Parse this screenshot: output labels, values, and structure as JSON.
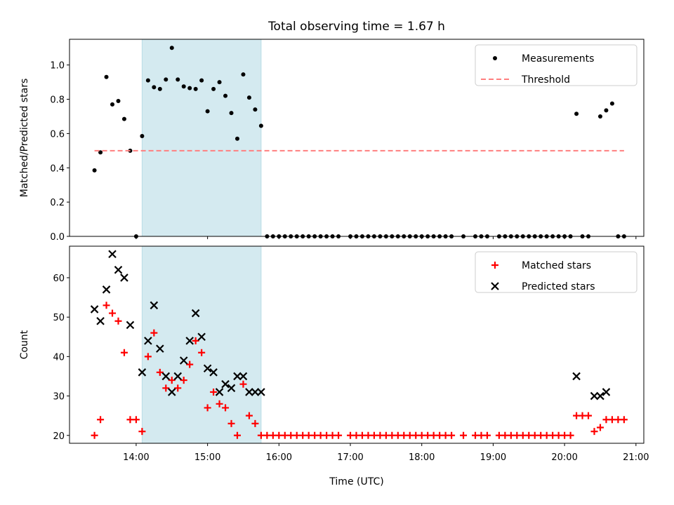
{
  "chart_data": [
    {
      "type": "scatter",
      "title": "Total observing time = 1.67 h",
      "xlabel": "",
      "ylabel": "Matched/Predicted stars",
      "xlim": [
        "13:04",
        "21:06"
      ],
      "ylim": [
        0,
        1.15
      ],
      "yticks": [
        0.0,
        0.2,
        0.4,
        0.6,
        0.8,
        1.0
      ],
      "ytick_labels": [
        "0.0",
        "0.2",
        "0.4",
        "0.6",
        "0.8",
        "1.0"
      ],
      "xticks": [
        "14:00",
        "15:00",
        "16:00",
        "17:00",
        "18:00",
        "19:00",
        "20:00",
        "21:00"
      ],
      "shaded_span": [
        "14:05",
        "15:45"
      ],
      "shade_color": "#d4eaf0",
      "legend_position": "upper right",
      "series": [
        {
          "name": "Measurements",
          "marker": "dot",
          "color": "#000000",
          "points": [
            [
              "13:25",
              0.385
            ],
            [
              "13:30",
              0.49
            ],
            [
              "13:35",
              0.93
            ],
            [
              "13:40",
              0.77
            ],
            [
              "13:45",
              0.79
            ],
            [
              "13:50",
              0.685
            ],
            [
              "13:55",
              0.5
            ],
            [
              "14:00",
              0.0
            ],
            [
              "14:05",
              0.585
            ],
            [
              "14:10",
              0.91
            ],
            [
              "14:15",
              0.87
            ],
            [
              "14:20",
              0.86
            ],
            [
              "14:25",
              0.915
            ],
            [
              "14:30",
              1.1
            ],
            [
              "14:35",
              0.915
            ],
            [
              "14:40",
              0.875
            ],
            [
              "14:45",
              0.865
            ],
            [
              "14:50",
              0.86
            ],
            [
              "14:55",
              0.91
            ],
            [
              "15:00",
              0.73
            ],
            [
              "15:05",
              0.86
            ],
            [
              "15:10",
              0.9
            ],
            [
              "15:15",
              0.82
            ],
            [
              "15:20",
              0.72
            ],
            [
              "15:25",
              0.57
            ],
            [
              "15:30",
              0.945
            ],
            [
              "15:35",
              0.81
            ],
            [
              "15:40",
              0.74
            ],
            [
              "15:45",
              0.645
            ],
            [
              "15:50",
              0.0
            ],
            [
              "15:55",
              0.0
            ],
            [
              "16:00",
              0.0
            ],
            [
              "16:05",
              0.0
            ],
            [
              "16:10",
              0.0
            ],
            [
              "16:15",
              0.0
            ],
            [
              "16:20",
              0.0
            ],
            [
              "16:25",
              0.0
            ],
            [
              "16:30",
              0.0
            ],
            [
              "16:35",
              0.0
            ],
            [
              "16:40",
              0.0
            ],
            [
              "16:45",
              0.0
            ],
            [
              "16:50",
              0.0
            ],
            [
              "17:00",
              0.0
            ],
            [
              "17:05",
              0.0
            ],
            [
              "17:10",
              0.0
            ],
            [
              "17:15",
              0.0
            ],
            [
              "17:20",
              0.0
            ],
            [
              "17:25",
              0.0
            ],
            [
              "17:30",
              0.0
            ],
            [
              "17:35",
              0.0
            ],
            [
              "17:40",
              0.0
            ],
            [
              "17:45",
              0.0
            ],
            [
              "17:50",
              0.0
            ],
            [
              "17:55",
              0.0
            ],
            [
              "18:00",
              0.0
            ],
            [
              "18:05",
              0.0
            ],
            [
              "18:10",
              0.0
            ],
            [
              "18:15",
              0.0
            ],
            [
              "18:20",
              0.0
            ],
            [
              "18:25",
              0.0
            ],
            [
              "18:35",
              0.0
            ],
            [
              "18:45",
              0.0
            ],
            [
              "18:50",
              0.0
            ],
            [
              "18:55",
              0.0
            ],
            [
              "19:05",
              0.0
            ],
            [
              "19:10",
              0.0
            ],
            [
              "19:15",
              0.0
            ],
            [
              "19:20",
              0.0
            ],
            [
              "19:25",
              0.0
            ],
            [
              "19:30",
              0.0
            ],
            [
              "19:35",
              0.0
            ],
            [
              "19:40",
              0.0
            ],
            [
              "19:45",
              0.0
            ],
            [
              "19:50",
              0.0
            ],
            [
              "19:55",
              0.0
            ],
            [
              "20:00",
              0.0
            ],
            [
              "20:05",
              0.0
            ],
            [
              "20:10",
              0.715
            ],
            [
              "20:15",
              0.0
            ],
            [
              "20:20",
              0.0
            ],
            [
              "20:30",
              0.7
            ],
            [
              "20:35",
              0.735
            ],
            [
              "20:40",
              0.775
            ],
            [
              "20:45",
              0.0
            ],
            [
              "20:50",
              0.0
            ]
          ]
        },
        {
          "name": "Threshold",
          "marker": "dashed-line",
          "color": "#ff7f7f",
          "points": [
            [
              "13:25",
              0.5
            ],
            [
              "20:50",
              0.5
            ]
          ]
        }
      ]
    },
    {
      "type": "scatter",
      "title": "",
      "xlabel": "Time (UTC)",
      "ylabel": "Count",
      "xlim": [
        "13:04",
        "21:06"
      ],
      "ylim": [
        18,
        68
      ],
      "yticks": [
        20,
        30,
        40,
        50,
        60
      ],
      "ytick_labels": [
        "20",
        "30",
        "40",
        "50",
        "60"
      ],
      "xticks": [
        "14:00",
        "15:00",
        "16:00",
        "17:00",
        "18:00",
        "19:00",
        "20:00",
        "21:00"
      ],
      "xtick_labels": [
        "14:00",
        "15:00",
        "16:00",
        "17:00",
        "18:00",
        "19:00",
        "20:00",
        "21:00"
      ],
      "shaded_span": [
        "14:05",
        "15:45"
      ],
      "shade_color": "#d4eaf0",
      "legend_position": "upper right",
      "series": [
        {
          "name": "Matched stars",
          "marker": "plus",
          "color": "#ff0000",
          "points": [
            [
              "13:25",
              20
            ],
            [
              "13:30",
              24
            ],
            [
              "13:35",
              53
            ],
            [
              "13:40",
              51
            ],
            [
              "13:45",
              49
            ],
            [
              "13:50",
              41
            ],
            [
              "13:55",
              24
            ],
            [
              "14:00",
              24
            ],
            [
              "14:05",
              21
            ],
            [
              "14:10",
              40
            ],
            [
              "14:15",
              46
            ],
            [
              "14:20",
              36
            ],
            [
              "14:25",
              32
            ],
            [
              "14:30",
              34
            ],
            [
              "14:35",
              32
            ],
            [
              "14:40",
              34
            ],
            [
              "14:45",
              38
            ],
            [
              "14:50",
              44
            ],
            [
              "14:55",
              41
            ],
            [
              "15:00",
              27
            ],
            [
              "15:05",
              31
            ],
            [
              "15:10",
              28
            ],
            [
              "15:15",
              27
            ],
            [
              "15:20",
              23
            ],
            [
              "15:25",
              20
            ],
            [
              "15:30",
              33
            ],
            [
              "15:35",
              25
            ],
            [
              "15:40",
              23
            ],
            [
              "15:45",
              20
            ],
            [
              "15:50",
              20
            ],
            [
              "15:55",
              20
            ],
            [
              "16:00",
              20
            ],
            [
              "16:05",
              20
            ],
            [
              "16:10",
              20
            ],
            [
              "16:15",
              20
            ],
            [
              "16:20",
              20
            ],
            [
              "16:25",
              20
            ],
            [
              "16:30",
              20
            ],
            [
              "16:35",
              20
            ],
            [
              "16:40",
              20
            ],
            [
              "16:45",
              20
            ],
            [
              "16:50",
              20
            ],
            [
              "17:00",
              20
            ],
            [
              "17:05",
              20
            ],
            [
              "17:10",
              20
            ],
            [
              "17:15",
              20
            ],
            [
              "17:20",
              20
            ],
            [
              "17:25",
              20
            ],
            [
              "17:30",
              20
            ],
            [
              "17:35",
              20
            ],
            [
              "17:40",
              20
            ],
            [
              "17:45",
              20
            ],
            [
              "17:50",
              20
            ],
            [
              "17:55",
              20
            ],
            [
              "18:00",
              20
            ],
            [
              "18:05",
              20
            ],
            [
              "18:10",
              20
            ],
            [
              "18:15",
              20
            ],
            [
              "18:20",
              20
            ],
            [
              "18:25",
              20
            ],
            [
              "18:35",
              20
            ],
            [
              "18:45",
              20
            ],
            [
              "18:50",
              20
            ],
            [
              "18:55",
              20
            ],
            [
              "19:05",
              20
            ],
            [
              "19:10",
              20
            ],
            [
              "19:15",
              20
            ],
            [
              "19:20",
              20
            ],
            [
              "19:25",
              20
            ],
            [
              "19:30",
              20
            ],
            [
              "19:35",
              20
            ],
            [
              "19:40",
              20
            ],
            [
              "19:45",
              20
            ],
            [
              "19:50",
              20
            ],
            [
              "19:55",
              20
            ],
            [
              "20:00",
              20
            ],
            [
              "20:05",
              20
            ],
            [
              "20:10",
              25
            ],
            [
              "20:15",
              25
            ],
            [
              "20:20",
              25
            ],
            [
              "20:25",
              21
            ],
            [
              "20:30",
              22
            ],
            [
              "20:35",
              24
            ],
            [
              "20:40",
              24
            ],
            [
              "20:45",
              24
            ],
            [
              "20:50",
              24
            ]
          ]
        },
        {
          "name": "Predicted stars",
          "marker": "x",
          "color": "#000000",
          "points": [
            [
              "13:25",
              52
            ],
            [
              "13:30",
              49
            ],
            [
              "13:35",
              57
            ],
            [
              "13:40",
              66
            ],
            [
              "13:45",
              62
            ],
            [
              "13:50",
              60
            ],
            [
              "13:55",
              48
            ],
            [
              "14:05",
              36
            ],
            [
              "14:10",
              44
            ],
            [
              "14:15",
              53
            ],
            [
              "14:20",
              42
            ],
            [
              "14:25",
              35
            ],
            [
              "14:30",
              31
            ],
            [
              "14:35",
              35
            ],
            [
              "14:40",
              39
            ],
            [
              "14:45",
              44
            ],
            [
              "14:50",
              51
            ],
            [
              "14:55",
              45
            ],
            [
              "15:00",
              37
            ],
            [
              "15:05",
              36
            ],
            [
              "15:10",
              31
            ],
            [
              "15:15",
              33
            ],
            [
              "15:20",
              32
            ],
            [
              "15:25",
              35
            ],
            [
              "15:30",
              35
            ],
            [
              "15:35",
              31
            ],
            [
              "15:40",
              31
            ],
            [
              "15:45",
              31
            ],
            [
              "20:10",
              35
            ],
            [
              "20:25",
              30
            ],
            [
              "20:30",
              30
            ],
            [
              "20:35",
              31
            ]
          ]
        }
      ]
    }
  ]
}
